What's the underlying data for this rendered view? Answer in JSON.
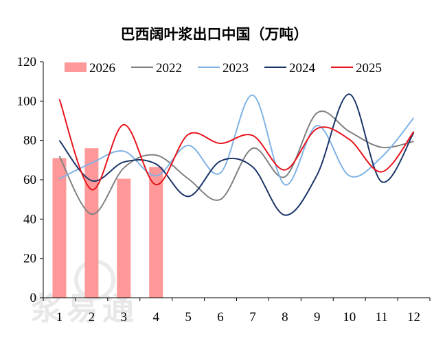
{
  "chart_data": {
    "type": "line",
    "title": "巴西阔叶浆出口中国（万吨）",
    "xlabel": "",
    "ylabel": "",
    "categories": [
      "1",
      "2",
      "3",
      "4",
      "5",
      "6",
      "7",
      "8",
      "9",
      "10",
      "11",
      "12"
    ],
    "yticks": [
      "0",
      "20",
      "40",
      "60",
      "80",
      "100",
      "120"
    ],
    "ylim": [
      0,
      120
    ],
    "grid": false,
    "legend_position": "top",
    "bar_series": {
      "name": "2026",
      "color": "#ff9999",
      "values": [
        71,
        76,
        60.5,
        66.5
      ]
    },
    "series": [
      {
        "name": "2022",
        "color": "#808080",
        "values": [
          72,
          42.5,
          66,
          72.5,
          60.5,
          50,
          76,
          61.5,
          94,
          84.5,
          76.5,
          79.5
        ]
      },
      {
        "name": "2023",
        "color": "#7fb2e5",
        "values": [
          60.5,
          68.5,
          74.5,
          62,
          77.5,
          63.5,
          103,
          57.5,
          87.5,
          62,
          71.5,
          91.5
        ]
      },
      {
        "name": "2024",
        "color": "#1a3568",
        "values": [
          80,
          59.5,
          69,
          68,
          51.5,
          69.5,
          66.5,
          42,
          62.5,
          103.5,
          59,
          84
        ]
      },
      {
        "name": "2025",
        "color": "#e8141c",
        "values": [
          101,
          55,
          88,
          57.5,
          83,
          78.5,
          82.5,
          65,
          86,
          80.5,
          64,
          84.5
        ]
      }
    ]
  },
  "watermark": "浆易通"
}
